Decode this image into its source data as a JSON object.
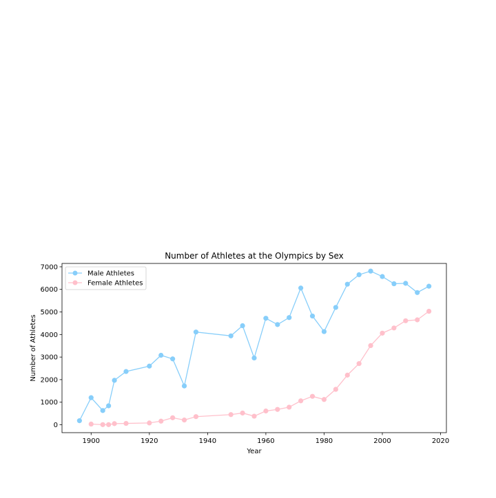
{
  "chart_data": {
    "type": "line",
    "title": "Number of Athletes at the Olympics by Sex",
    "xlabel": "Year",
    "ylabel": "Number of Athletes",
    "xlim": [
      1890,
      2022
    ],
    "ylim": [
      -350,
      7150
    ],
    "xticks": [
      1900,
      1920,
      1940,
      1960,
      1980,
      2000,
      2020
    ],
    "yticks": [
      0,
      1000,
      2000,
      3000,
      4000,
      5000,
      6000,
      7000
    ],
    "grid": false,
    "legend": "top-left",
    "series": [
      {
        "name": "Male Athletes",
        "color": "#87cefa",
        "x": [
          1896,
          1900,
          1904,
          1906,
          1908,
          1912,
          1920,
          1924,
          1928,
          1932,
          1936,
          1948,
          1952,
          1956,
          1960,
          1964,
          1968,
          1972,
          1976,
          1980,
          1984,
          1988,
          1992,
          1996,
          2000,
          2004,
          2008,
          2012,
          2016
        ],
        "values": [
          180,
          1200,
          630,
          840,
          1970,
          2360,
          2600,
          3080,
          2920,
          1720,
          4110,
          3940,
          4390,
          2960,
          4720,
          4440,
          4750,
          6060,
          4820,
          4130,
          5200,
          6230,
          6650,
          6810,
          6570,
          6250,
          6270,
          5860,
          6140
        ]
      },
      {
        "name": "Female Athletes",
        "color": "#ffc0cb",
        "x": [
          1900,
          1904,
          1906,
          1908,
          1912,
          1920,
          1924,
          1928,
          1932,
          1936,
          1948,
          1952,
          1956,
          1960,
          1964,
          1968,
          1972,
          1976,
          1980,
          1984,
          1988,
          1992,
          1996,
          2000,
          2004,
          2008,
          2012,
          2016
        ],
        "values": [
          30,
          5,
          5,
          50,
          60,
          80,
          160,
          310,
          210,
          360,
          450,
          520,
          380,
          610,
          680,
          780,
          1060,
          1260,
          1120,
          1570,
          2200,
          2710,
          3510,
          4060,
          4290,
          4610,
          4650,
          5030
        ]
      }
    ]
  }
}
